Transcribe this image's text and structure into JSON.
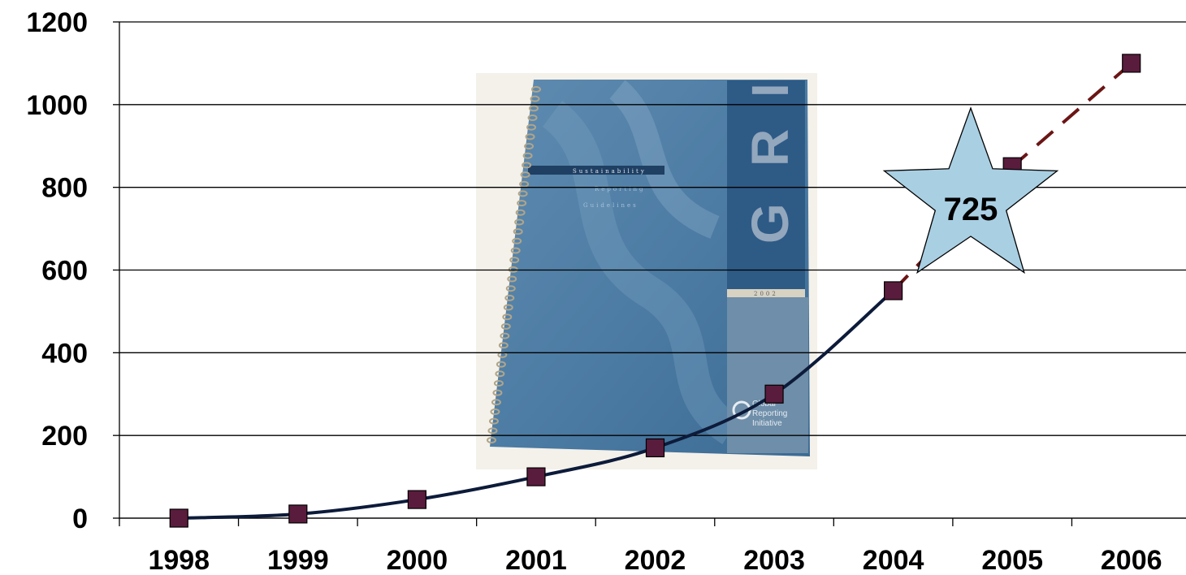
{
  "chart_data": {
    "type": "line",
    "x": [
      "1998",
      "1999",
      "2000",
      "2001",
      "2002",
      "2003",
      "2004",
      "2005",
      "2006"
    ],
    "ylim": [
      0,
      1200
    ],
    "yticks": [
      "0",
      "200",
      "400",
      "600",
      "800",
      "1000",
      "1200"
    ],
    "grid": true,
    "series": [
      {
        "values": [
          0,
          10,
          45,
          100,
          170,
          300,
          550,
          850,
          1100
        ],
        "line_color": "#0d1b3a",
        "projected_color": "#6b1515",
        "marker_color": "#5a1c3c",
        "projected_from_index": 6
      }
    ],
    "annotation": {
      "shape": "star",
      "text": "725",
      "fill": "#a9cfe3"
    },
    "book": {
      "title": "Sustainability",
      "subtitle1": "Reporting",
      "subtitle2": "Guidelines",
      "letters": [
        "G",
        "R",
        "I"
      ],
      "year": "2002",
      "publisher": [
        "Global",
        "Reporting",
        "Initiative"
      ]
    }
  }
}
